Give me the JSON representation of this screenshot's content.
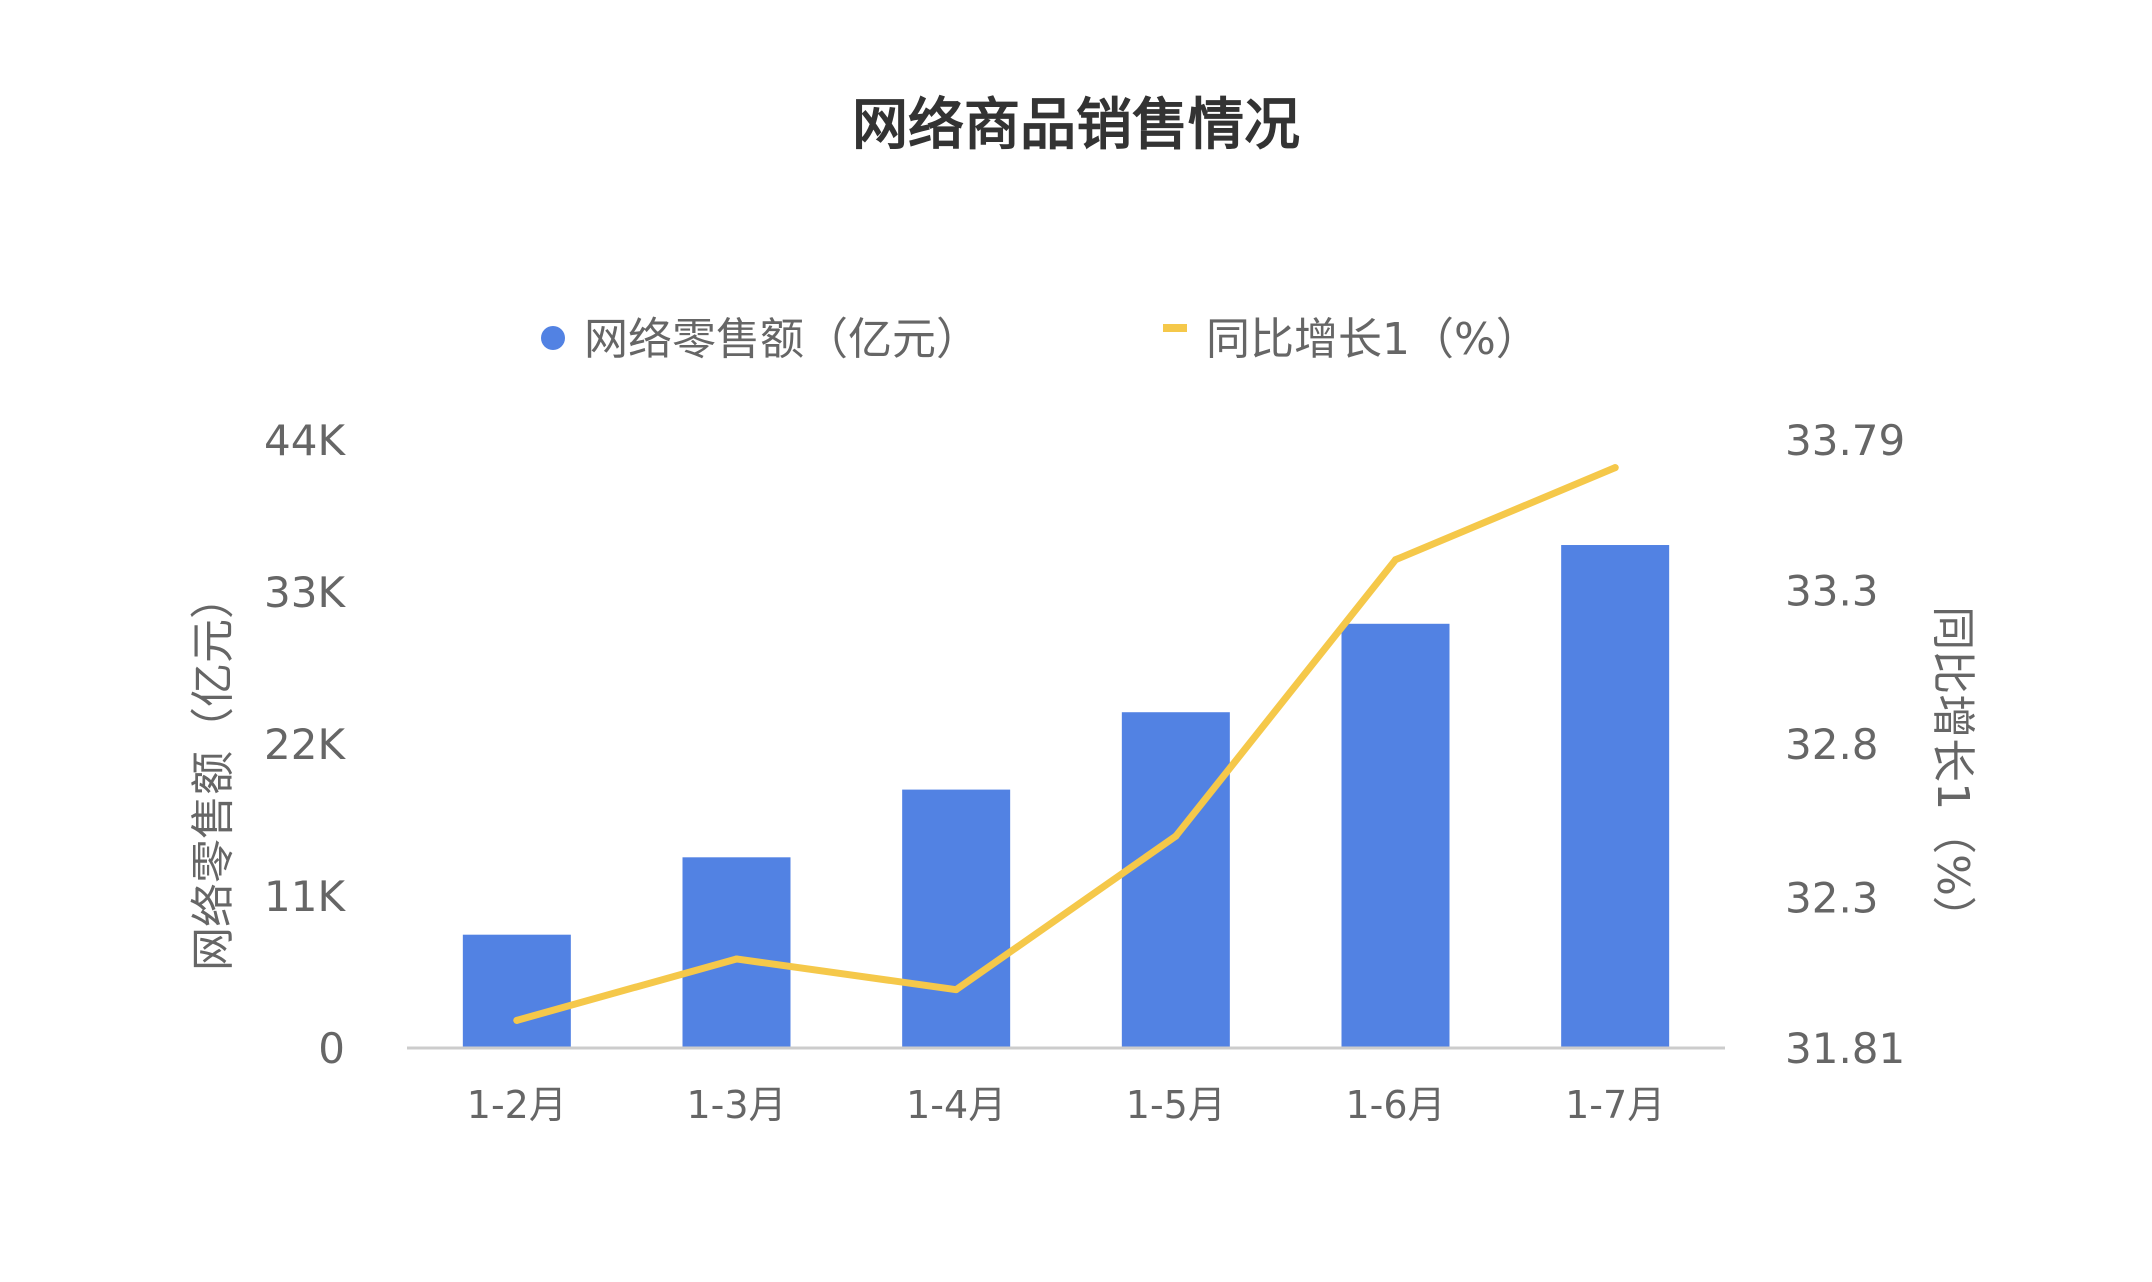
{
  "chart_data": {
    "type": "bar",
    "title": "网络商品销售情况",
    "categories": [
      "1-2月",
      "1-3月",
      "1-4月",
      "1-5月",
      "1-6月",
      "1-7月"
    ],
    "series": [
      {
        "name": "网络零售额（亿元）",
        "type": "bar",
        "axis": "left",
        "color": "#5282E3",
        "values": [
          8200,
          13800,
          18700,
          24300,
          30700,
          36400
        ]
      },
      {
        "name": "同比增长1（%）",
        "type": "line",
        "axis": "right",
        "color": "#F5C84A",
        "values": [
          31.9,
          32.1,
          32.0,
          32.5,
          33.4,
          33.7
        ]
      }
    ],
    "y_left": {
      "label": "网络零售额（亿元）",
      "ylim": [
        0,
        44000
      ],
      "ticks": [
        0,
        11000,
        22000,
        33000,
        44000
      ],
      "tick_labels": [
        "0",
        "11K",
        "22K",
        "33K",
        "44K"
      ]
    },
    "y_right": {
      "label": "同比增长1（%）",
      "ylim": [
        31.81,
        33.79
      ],
      "ticks": [
        31.81,
        32.3,
        32.8,
        33.3,
        33.79
      ],
      "tick_labels": [
        "31.81",
        "32.3",
        "32.8",
        "33.3",
        "33.79"
      ]
    },
    "legend": "top-center",
    "grid": false,
    "colors": {
      "axis": "#CCCCCC",
      "tick_text": "#666666",
      "title": "#333333"
    }
  }
}
